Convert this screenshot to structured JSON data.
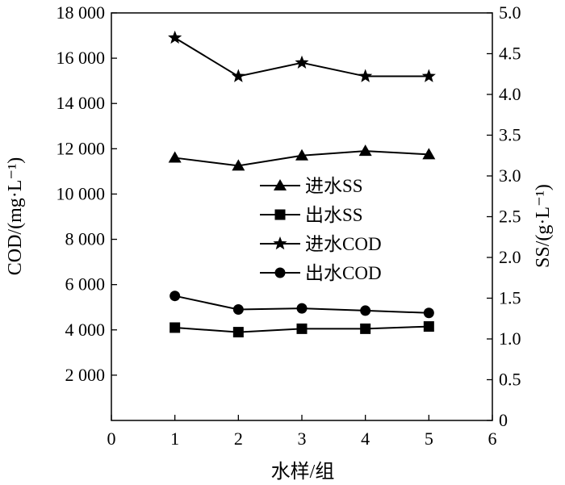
{
  "chart_data": {
    "type": "line",
    "title": "",
    "xlabel": "水样/组",
    "ylabel_left": "COD/(mg·L⁻¹)",
    "ylabel_right": "SS/(g·L⁻¹)",
    "x_ticks": [
      "0",
      "1",
      "2",
      "3",
      "4",
      "5",
      "6"
    ],
    "xlim": [
      0,
      6
    ],
    "y_left_ticks": [
      "2 000",
      "4 000",
      "6 000",
      "8 000",
      "10 000",
      "12 000",
      "14 000",
      "16 000",
      "18 000"
    ],
    "ylim_left": [
      0,
      18000
    ],
    "y_right_ticks": [
      "0",
      "0.5",
      "1.0",
      "1.5",
      "2.0",
      "2.5",
      "3.0",
      "3.5",
      "4.0",
      "4.5",
      "5.0"
    ],
    "ylim_right": [
      0,
      5
    ],
    "grid": false,
    "legend_position": "center",
    "x": [
      1,
      2,
      3,
      4,
      5
    ],
    "series": [
      {
        "name": "进水SS",
        "axis": "left",
        "marker": "triangle",
        "values": [
          11600,
          11250,
          11700,
          11900,
          11750
        ]
      },
      {
        "name": "出水SS",
        "axis": "left",
        "marker": "square",
        "values": [
          4100,
          3900,
          4050,
          4050,
          4150
        ]
      },
      {
        "name": "进水COD",
        "axis": "left",
        "marker": "star",
        "values": [
          16900,
          15200,
          15800,
          15200,
          15200
        ]
      },
      {
        "name": "出水COD",
        "axis": "left",
        "marker": "circle",
        "values": [
          5500,
          4900,
          4950,
          4850,
          4750
        ]
      }
    ]
  }
}
